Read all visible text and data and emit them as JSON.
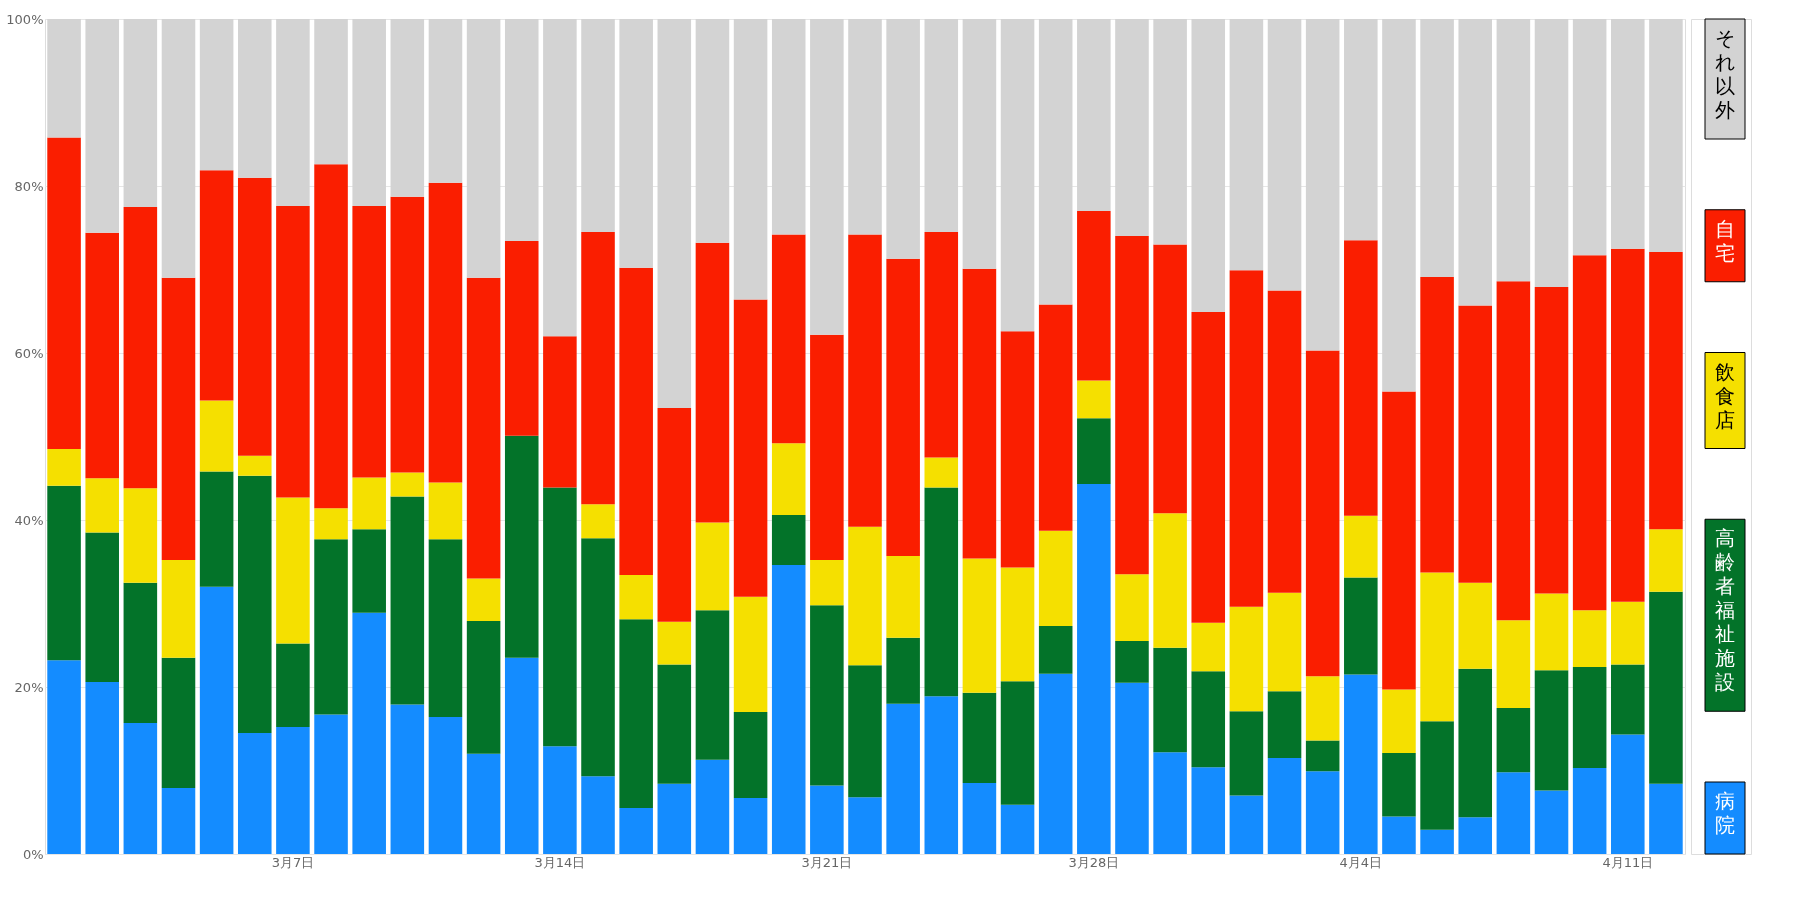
{
  "chart_data": {
    "type": "bar",
    "stacked": true,
    "grid": "y",
    "legend": "right",
    "categories": [
      null,
      null,
      null,
      null,
      null,
      null,
      "3月7日",
      null,
      null,
      null,
      null,
      null,
      null,
      "3月14日",
      null,
      null,
      null,
      null,
      null,
      null,
      "3月21日",
      null,
      null,
      null,
      null,
      null,
      null,
      "3月28日",
      null,
      null,
      null,
      null,
      null,
      null,
      "4月4日",
      null,
      null,
      null,
      null,
      null,
      null,
      "4月11日",
      null
    ],
    "ylim": [
      0,
      100
    ],
    "yticks": [
      {
        "value": 0,
        "label": "0%"
      },
      {
        "value": 20,
        "label": "20%"
      },
      {
        "value": 40,
        "label": "40%"
      },
      {
        "value": 60,
        "label": "60%"
      },
      {
        "value": 80,
        "label": "80%"
      },
      {
        "value": 100,
        "label": "100%"
      }
    ],
    "series": [
      {
        "name": "病院",
        "color": "#148cff",
        "values": [
          23.2,
          20.6,
          15.7,
          7.9,
          32.0,
          14.5,
          15.2,
          16.7,
          28.9,
          17.9,
          16.4,
          12.0,
          23.5,
          12.9,
          9.3,
          5.5,
          8.4,
          11.3,
          6.7,
          34.6,
          8.2,
          6.8,
          18.0,
          18.9,
          8.5,
          5.9,
          21.6,
          44.3,
          20.5,
          12.2,
          10.4,
          7.0,
          11.5,
          9.9,
          21.5,
          4.5,
          2.9,
          4.4,
          9.8,
          7.6,
          10.3,
          14.3,
          8.4
        ]
      },
      {
        "name": "高齢者福祉施設",
        "color": "#037329",
        "values": [
          20.9,
          17.9,
          16.8,
          15.6,
          13.8,
          30.8,
          10.0,
          21.0,
          10.0,
          24.9,
          21.3,
          15.9,
          26.6,
          31.0,
          28.5,
          22.6,
          14.3,
          17.9,
          10.3,
          6.0,
          21.6,
          15.8,
          7.9,
          25.0,
          10.8,
          14.8,
          5.7,
          7.9,
          5.0,
          12.5,
          11.5,
          10.1,
          8.0,
          3.7,
          11.6,
          7.6,
          13.0,
          17.8,
          7.7,
          14.4,
          12.1,
          8.4,
          23.0
        ]
      },
      {
        "name": "飲食店",
        "color": "#f5e000",
        "values": [
          4.4,
          6.5,
          11.3,
          11.7,
          8.5,
          2.4,
          17.5,
          3.7,
          6.2,
          2.9,
          6.8,
          5.1,
          0,
          0,
          4.1,
          5.3,
          5.1,
          10.5,
          13.8,
          8.6,
          5.4,
          16.6,
          9.8,
          3.6,
          16.1,
          13.6,
          11.4,
          4.5,
          8.0,
          16.1,
          5.8,
          12.5,
          11.8,
          7.7,
          7.4,
          7.6,
          17.8,
          10.3,
          10.5,
          9.2,
          6.8,
          7.5,
          7.5
        ]
      },
      {
        "name": "自宅",
        "color": "#fa1e00",
        "values": [
          37.3,
          29.4,
          33.7,
          33.8,
          27.6,
          33.3,
          34.9,
          41.2,
          32.5,
          33.0,
          35.9,
          36.0,
          23.3,
          18.1,
          32.6,
          36.8,
          25.6,
          33.5,
          35.6,
          25.0,
          27.0,
          35.0,
          35.6,
          27.0,
          34.7,
          28.3,
          27.1,
          20.3,
          40.5,
          32.2,
          37.2,
          40.3,
          36.2,
          39.0,
          33.0,
          35.7,
          35.4,
          33.2,
          40.6,
          36.7,
          42.5,
          42.3,
          33.2
        ]
      },
      {
        "name": "それ以外",
        "color": "#d3d3d3",
        "values": [
          14.2,
          25.6,
          22.5,
          31.0,
          18.1,
          19.0,
          22.4,
          17.4,
          22.4,
          21.3,
          19.6,
          31.0,
          26.6,
          38.0,
          25.5,
          29.8,
          46.6,
          26.8,
          33.6,
          25.8,
          37.8,
          25.8,
          28.7,
          25.5,
          29.9,
          37.4,
          34.2,
          23.0,
          26.0,
          27.0,
          35.1,
          30.1,
          32.5,
          39.7,
          26.5,
          44.6,
          30.9,
          34.3,
          31.4,
          32.1,
          28.3,
          27.5,
          27.9
        ]
      }
    ]
  }
}
